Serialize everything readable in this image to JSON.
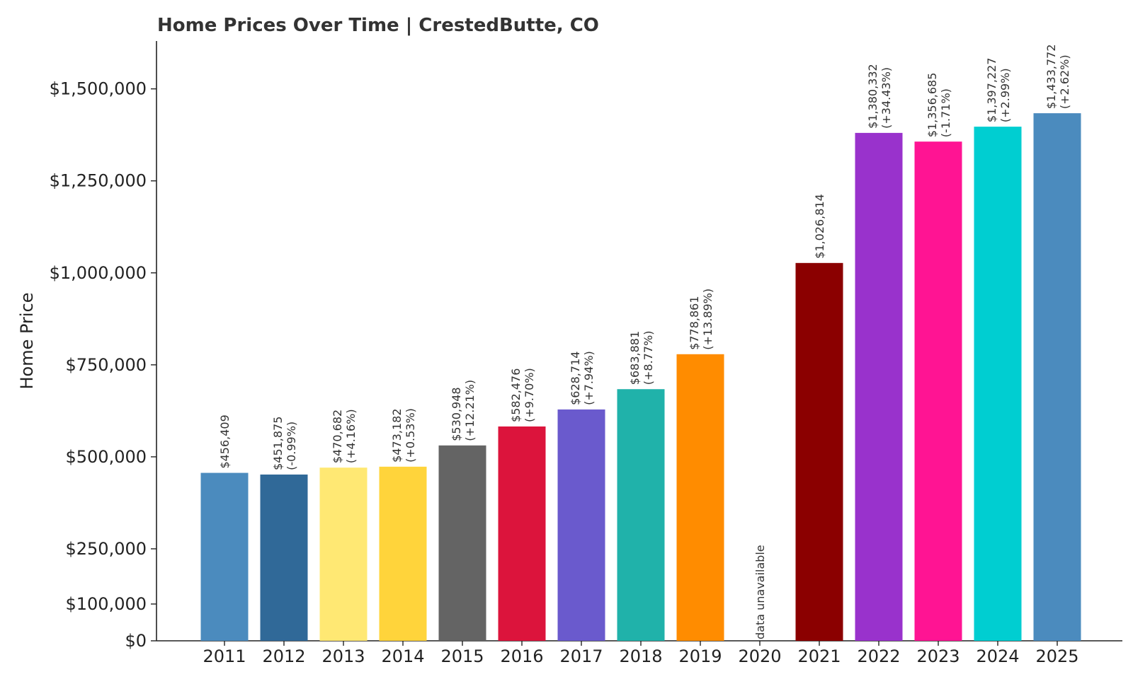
{
  "chart_data": {
    "type": "bar",
    "title": "Home Prices Over Time | CrestedButte, CO",
    "xlabel": "",
    "ylabel": "Home Price",
    "categories": [
      "2011",
      "2012",
      "2013",
      "2014",
      "2015",
      "2016",
      "2017",
      "2018",
      "2019",
      "2020",
      "2021",
      "2022",
      "2023",
      "2024",
      "2025"
    ],
    "values": [
      456409,
      451875,
      470682,
      473182,
      530948,
      582476,
      628714,
      683881,
      778861,
      null,
      1026814,
      1380332,
      1356685,
      1397227,
      1433772
    ],
    "value_labels": [
      "$456,409",
      "$451,875",
      "$470,682",
      "$473,182",
      "$530,948",
      "$582,476",
      "$628,714",
      "$683,881",
      "$778,861",
      "",
      "$1,026,814",
      "$1,380,332",
      "$1,356,685",
      "$1,397,227",
      "$1,433,772"
    ],
    "change_labels": [
      "",
      "(-0.99%)",
      "(+4.16%)",
      "(+0.53%)",
      "(+12.21%)",
      "(+9.70%)",
      "(+7.94%)",
      "(+8.77%)",
      "(+13.89%)",
      "",
      "",
      "(+34.43%)",
      "(-1.71%)",
      "(+2.99%)",
      "(+2.62%)"
    ],
    "missing_label": "data unavailable",
    "colors": [
      "#4b8bbe",
      "#306998",
      "#ffe873",
      "#ffd43b",
      "#646464",
      "#dc143c",
      "#6a5acd",
      "#20b2aa",
      "#ff8c00",
      "#cccccc",
      "#8b0000",
      "#9932cc",
      "#ff1493",
      "#00ced1",
      "#4b8bbe"
    ],
    "yticks": [
      0,
      100000,
      250000,
      500000,
      750000,
      1000000,
      1250000,
      1500000
    ],
    "ytick_labels": [
      "$0",
      "$100,000",
      "$250,000",
      "$500,000",
      "$750,000",
      "$1,000,000",
      "$1,250,000",
      "$1,500,000"
    ],
    "ylim": [
      0,
      1630000
    ],
    "grid": false,
    "legend": "none"
  }
}
